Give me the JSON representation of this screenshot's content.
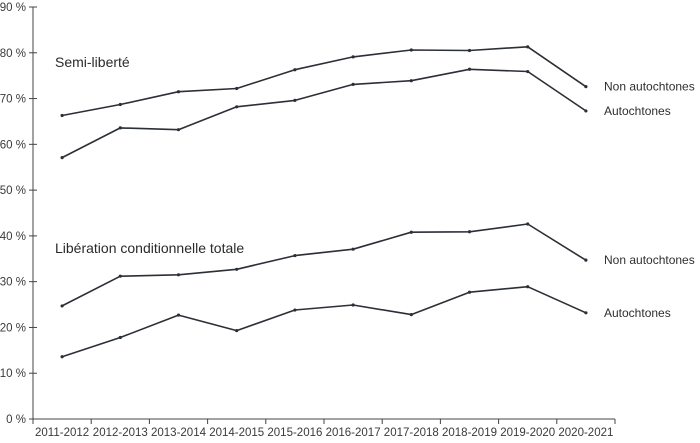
{
  "chart_data": {
    "type": "line",
    "categories": [
      "2011-2012",
      "2012-2013",
      "2013-2014",
      "2014-2015",
      "2015-2016",
      "2016-2017",
      "2017-2018",
      "2018-2019",
      "2019-2020",
      "2020-2021"
    ],
    "ylim": [
      0,
      90
    ],
    "yticks": [
      {
        "value": 0,
        "label": "0 %"
      },
      {
        "value": 10,
        "label": "10 %"
      },
      {
        "value": 20,
        "label": "20 %"
      },
      {
        "value": 30,
        "label": "30 %"
      },
      {
        "value": 40,
        "label": "40 %"
      },
      {
        "value": 50,
        "label": "50 %"
      },
      {
        "value": 60,
        "label": "60 %"
      },
      {
        "value": 70,
        "label": "70 %"
      },
      {
        "value": 80,
        "label": "80 %"
      },
      {
        "value": 90,
        "label": "90 %"
      }
    ],
    "grid": false,
    "line_color": "#2b2f36",
    "groups": [
      {
        "label": "Semi-liberté",
        "series": [
          {
            "name": "Non autochtones",
            "values": [
              66.3,
              68.7,
              71.5,
              72.2,
              76.3,
              79.1,
              80.6,
              80.5,
              81.3,
              72.6
            ]
          },
          {
            "name": "Autochtones",
            "values": [
              57.1,
              63.6,
              63.2,
              68.2,
              69.6,
              73.1,
              73.9,
              76.4,
              75.9,
              67.3
            ]
          }
        ]
      },
      {
        "label": "Libération conditionnelle totale",
        "series": [
          {
            "name": "Non autochtones",
            "values": [
              24.7,
              31.2,
              31.5,
              32.7,
              35.7,
              37.1,
              40.8,
              40.9,
              42.6,
              34.7
            ]
          },
          {
            "name": "Autochtones",
            "values": [
              13.6,
              17.8,
              22.7,
              19.3,
              23.8,
              24.9,
              22.8,
              27.7,
              28.9,
              23.2
            ]
          }
        ]
      }
    ]
  }
}
